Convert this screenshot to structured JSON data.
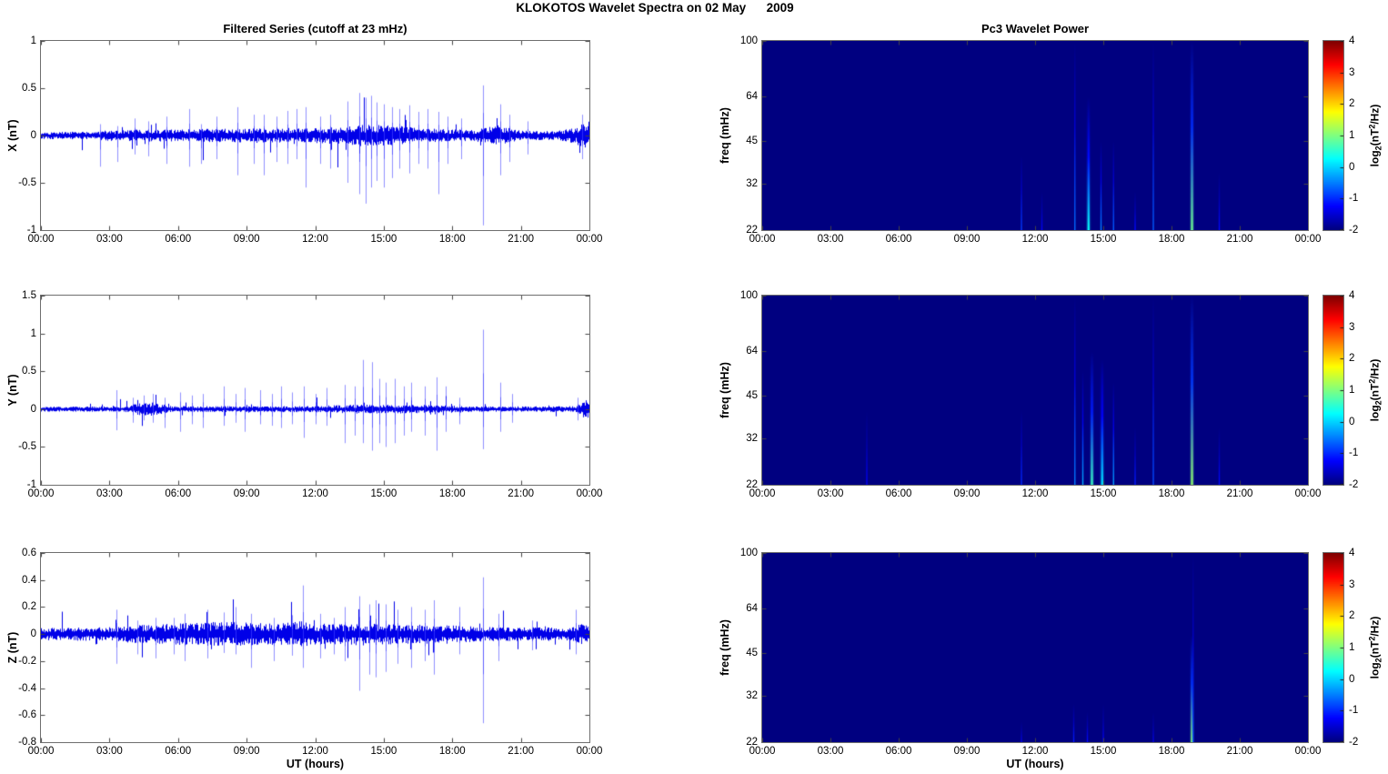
{
  "figure": {
    "title": "KLOKOTOS Wavelet Spectra on 02 May      2009",
    "background": "#ffffff"
  },
  "x_axis": {
    "tick_labels": [
      "00:00",
      "03:00",
      "06:00",
      "09:00",
      "12:00",
      "15:00",
      "18:00",
      "21:00",
      "00:00"
    ],
    "tick_hours": [
      0,
      3,
      6,
      9,
      12,
      15,
      18,
      21,
      24
    ],
    "xlim_hours": [
      0,
      24
    ],
    "xlabel": "UT (hours)"
  },
  "colorbar": {
    "ticks": [
      "4",
      "3",
      "2",
      "1",
      "0",
      "-1",
      "-2"
    ],
    "tick_values": [
      4,
      3,
      2,
      1,
      0,
      -1,
      -2
    ],
    "clim": [
      -2,
      4
    ],
    "colormap": "jet",
    "label_parts": {
      "prefix": "log",
      "sub": "2",
      "mid": "(nT",
      "sup": "2",
      "suffix": "/Hz)"
    }
  },
  "colors": {
    "line": "#0000e8",
    "spike": "rgba(55,55,255,0.55)",
    "axis": "#6e6e6e",
    "tick_mark": "#444444",
    "spectrogram_bg_value": -2,
    "text": "#000000"
  },
  "chart_data": [
    {
      "type": "line",
      "id": "x-series",
      "title": "Filtered Series (cutoff at 23 mHz)",
      "ylabel": "X (nT)",
      "ylim": [
        -1,
        1
      ],
      "yticks": [
        "1",
        "0.5",
        "0",
        "-0.5",
        "-1"
      ],
      "ytick_values": [
        1,
        0.5,
        0,
        -0.5,
        -1
      ],
      "grid": false,
      "seed": 101,
      "noise_envelope": [
        [
          0,
          0.03
        ],
        [
          2.5,
          0.032
        ],
        [
          3,
          0.045
        ],
        [
          5,
          0.05
        ],
        [
          8,
          0.055
        ],
        [
          9.5,
          0.06
        ],
        [
          11,
          0.055
        ],
        [
          13,
          0.07
        ],
        [
          13.8,
          0.09
        ],
        [
          15.5,
          0.085
        ],
        [
          16.5,
          0.06
        ],
        [
          18,
          0.05
        ],
        [
          19,
          0.045
        ],
        [
          19.6,
          0.075
        ],
        [
          20.3,
          0.07
        ],
        [
          21,
          0.04
        ],
        [
          22.5,
          0.035
        ],
        [
          23.3,
          0.06
        ],
        [
          23.8,
          0.1
        ],
        [
          24,
          0.1
        ]
      ],
      "spikes": [
        [
          2.6,
          0.12,
          -0.33
        ],
        [
          3.35,
          0.1,
          -0.28
        ],
        [
          4.1,
          0.18,
          -0.2
        ],
        [
          4.7,
          0.15,
          -0.22
        ],
        [
          5.5,
          0.2,
          -0.3
        ],
        [
          6.5,
          0.28,
          -0.33
        ],
        [
          7.0,
          0.12,
          -0.3
        ],
        [
          7.7,
          0.2,
          -0.25
        ],
        [
          8.6,
          0.3,
          -0.42
        ],
        [
          9.3,
          0.22,
          -0.3
        ],
        [
          9.75,
          0.22,
          -0.42
        ],
        [
          10.3,
          0.2,
          -0.28
        ],
        [
          10.8,
          0.26,
          -0.3
        ],
        [
          11.2,
          0.28,
          -0.25
        ],
        [
          11.6,
          0.3,
          -0.55
        ],
        [
          12.2,
          0.2,
          -0.3
        ],
        [
          12.65,
          0.22,
          -0.35
        ],
        [
          13.4,
          0.36,
          -0.5
        ],
        [
          13.95,
          0.45,
          -0.62
        ],
        [
          14.2,
          0.4,
          -0.72
        ],
        [
          14.45,
          0.42,
          -0.55
        ],
        [
          14.7,
          0.35,
          -0.48
        ],
        [
          15.0,
          0.33,
          -0.55
        ],
        [
          15.35,
          0.3,
          -0.45
        ],
        [
          15.7,
          0.28,
          -0.35
        ],
        [
          16.1,
          0.32,
          -0.4
        ],
        [
          16.5,
          0.25,
          -0.3
        ],
        [
          16.9,
          0.28,
          -0.35
        ],
        [
          17.4,
          0.25,
          -0.62
        ],
        [
          17.8,
          0.2,
          -0.3
        ],
        [
          18.4,
          0.18,
          -0.25
        ],
        [
          19.35,
          0.53,
          -0.95
        ],
        [
          20.1,
          0.33,
          -0.42
        ],
        [
          20.5,
          0.22,
          -0.28
        ],
        [
          21.3,
          0.15,
          -0.2
        ],
        [
          23.7,
          0.22,
          -0.25
        ]
      ]
    },
    {
      "type": "line",
      "id": "y-series",
      "title": "",
      "ylabel": "Y (nT)",
      "ylim": [
        -1,
        1.5
      ],
      "yticks": [
        "1.5",
        "1",
        "0.5",
        "0",
        "-0.5",
        "-1"
      ],
      "ytick_values": [
        1.5,
        1,
        0.5,
        0,
        -0.5,
        -1
      ],
      "grid": false,
      "seed": 202,
      "noise_envelope": [
        [
          0,
          0.025
        ],
        [
          3.8,
          0.028
        ],
        [
          4.2,
          0.06
        ],
        [
          4.8,
          0.07
        ],
        [
          5.5,
          0.04
        ],
        [
          6,
          0.03
        ],
        [
          9,
          0.03
        ],
        [
          12,
          0.032
        ],
        [
          13.5,
          0.045
        ],
        [
          16,
          0.045
        ],
        [
          17.5,
          0.04
        ],
        [
          19,
          0.03
        ],
        [
          21,
          0.028
        ],
        [
          23.4,
          0.03
        ],
        [
          23.8,
          0.09
        ],
        [
          24,
          0.09
        ]
      ],
      "spikes": [
        [
          3.3,
          0.25,
          -0.28
        ],
        [
          4.0,
          0.15,
          -0.18
        ],
        [
          4.5,
          0.18,
          -0.15
        ],
        [
          4.9,
          0.2,
          -0.18
        ],
        [
          5.4,
          0.15,
          -0.25
        ],
        [
          6.1,
          0.22,
          -0.3
        ],
        [
          6.6,
          0.18,
          -0.2
        ],
        [
          7.1,
          0.2,
          -0.25
        ],
        [
          8.0,
          0.3,
          -0.22
        ],
        [
          8.5,
          0.2,
          -0.18
        ],
        [
          8.9,
          0.28,
          -0.3
        ],
        [
          9.6,
          0.25,
          -0.2
        ],
        [
          10.1,
          0.2,
          -0.22
        ],
        [
          10.5,
          0.3,
          -0.25
        ],
        [
          11.0,
          0.22,
          -0.2
        ],
        [
          11.5,
          0.3,
          -0.38
        ],
        [
          12.0,
          0.2,
          -0.2
        ],
        [
          12.5,
          0.28,
          -0.22
        ],
        [
          13.3,
          0.32,
          -0.45
        ],
        [
          13.75,
          0.3,
          -0.35
        ],
        [
          14.1,
          0.65,
          -0.45
        ],
        [
          14.5,
          0.62,
          -0.55
        ],
        [
          14.8,
          0.4,
          -0.45
        ],
        [
          15.1,
          0.35,
          -0.5
        ],
        [
          15.5,
          0.4,
          -0.45
        ],
        [
          15.9,
          0.3,
          -0.35
        ],
        [
          16.2,
          0.35,
          -0.3
        ],
        [
          16.8,
          0.3,
          -0.35
        ],
        [
          17.3,
          0.42,
          -0.55
        ],
        [
          17.7,
          0.3,
          -0.3
        ],
        [
          18.3,
          0.15,
          -0.2
        ],
        [
          19.35,
          1.05,
          -0.53
        ],
        [
          20.1,
          0.35,
          -0.3
        ],
        [
          20.6,
          0.2,
          -0.18
        ],
        [
          23.5,
          0.15,
          -0.15
        ]
      ]
    },
    {
      "type": "line",
      "id": "z-series",
      "title": "",
      "ylabel": "Z (nT)",
      "ylim": [
        -0.8,
        0.6
      ],
      "yticks": [
        "0.6",
        "0.4",
        "0.2",
        "0",
        "-0.2",
        "-0.4",
        "-0.6",
        "-0.8"
      ],
      "ytick_values": [
        0.6,
        0.4,
        0.2,
        0,
        -0.2,
        -0.4,
        -0.6,
        -0.8
      ],
      "xlabel": "UT (hours)",
      "grid": false,
      "seed": 303,
      "noise_envelope": [
        [
          0,
          0.035
        ],
        [
          3,
          0.04
        ],
        [
          4,
          0.05
        ],
        [
          5,
          0.055
        ],
        [
          6.5,
          0.065
        ],
        [
          8,
          0.07
        ],
        [
          9,
          0.065
        ],
        [
          10.5,
          0.06
        ],
        [
          11.3,
          0.075
        ],
        [
          12,
          0.06
        ],
        [
          13,
          0.06
        ],
        [
          14,
          0.065
        ],
        [
          15,
          0.06
        ],
        [
          16,
          0.055
        ],
        [
          17,
          0.055
        ],
        [
          18,
          0.05
        ],
        [
          19,
          0.045
        ],
        [
          20,
          0.04
        ],
        [
          21,
          0.038
        ],
        [
          23.3,
          0.04
        ],
        [
          23.6,
          0.065
        ],
        [
          24,
          0.05
        ]
      ],
      "spikes": [
        [
          3.3,
          0.18,
          -0.22
        ],
        [
          4.2,
          0.1,
          -0.15
        ],
        [
          5.0,
          0.12,
          -0.18
        ],
        [
          5.8,
          0.12,
          -0.15
        ],
        [
          6.3,
          0.15,
          -0.2
        ],
        [
          7.3,
          0.18,
          -0.18
        ],
        [
          8.0,
          0.16,
          -0.14
        ],
        [
          8.5,
          0.2,
          -0.15
        ],
        [
          9.2,
          0.15,
          -0.25
        ],
        [
          10.2,
          0.12,
          -0.2
        ],
        [
          11.0,
          0.14,
          -0.16
        ],
        [
          11.45,
          0.36,
          -0.25
        ],
        [
          12.2,
          0.15,
          -0.18
        ],
        [
          12.8,
          0.12,
          -0.15
        ],
        [
          13.3,
          0.2,
          -0.2
        ],
        [
          13.95,
          0.28,
          -0.42
        ],
        [
          14.35,
          0.22,
          -0.3
        ],
        [
          14.65,
          0.25,
          -0.32
        ],
        [
          15.1,
          0.22,
          -0.28
        ],
        [
          15.6,
          0.18,
          -0.22
        ],
        [
          16.2,
          0.2,
          -0.25
        ],
        [
          16.8,
          0.18,
          -0.2
        ],
        [
          17.2,
          0.25,
          -0.3
        ],
        [
          18.3,
          0.2,
          -0.15
        ],
        [
          19.35,
          0.42,
          -0.66
        ],
        [
          20.0,
          0.15,
          -0.2
        ],
        [
          21.5,
          0.1,
          -0.12
        ],
        [
          23.4,
          0.18,
          -0.15
        ]
      ]
    },
    {
      "type": "heatmap",
      "id": "x-wavelet",
      "title": "Pc3 Wavelet Power",
      "ylabel": "freq (mHz)",
      "yscale": "log",
      "ylim": [
        22,
        100
      ],
      "yticks": [
        "100",
        "64",
        "45",
        "32",
        "22"
      ],
      "ytick_values": [
        100,
        64,
        45,
        32,
        22
      ],
      "clim": [
        -2,
        4
      ],
      "background_value": -2,
      "streaks": [
        [
          11.4,
          40,
          -0.9
        ],
        [
          12.3,
          30,
          -1.3
        ],
        [
          13.75,
          100,
          -0.6
        ],
        [
          14.35,
          64,
          0.3
        ],
        [
          14.9,
          45,
          -0.5
        ],
        [
          15.45,
          45,
          -0.7
        ],
        [
          16.4,
          30,
          -1.2
        ],
        [
          17.2,
          100,
          -0.7
        ],
        [
          18.9,
          100,
          0.9
        ],
        [
          20.1,
          35,
          -1.2
        ]
      ]
    },
    {
      "type": "heatmap",
      "id": "y-wavelet",
      "title": "",
      "ylabel": "freq (mHz)",
      "yscale": "log",
      "ylim": [
        22,
        100
      ],
      "yticks": [
        "100",
        "64",
        "45",
        "32",
        "22"
      ],
      "ytick_values": [
        100,
        64,
        45,
        32,
        22
      ],
      "clim": [
        -2,
        4
      ],
      "background_value": -2,
      "streaks": [
        [
          4.6,
          40,
          -1.3
        ],
        [
          11.4,
          40,
          -1.0
        ],
        [
          13.75,
          100,
          -0.5
        ],
        [
          14.1,
          55,
          -0.2
        ],
        [
          14.5,
          64,
          0.6
        ],
        [
          14.95,
          60,
          0.1
        ],
        [
          15.45,
          50,
          -0.3
        ],
        [
          16.4,
          35,
          -1.1
        ],
        [
          17.2,
          100,
          -0.8
        ],
        [
          18.9,
          100,
          1.1
        ],
        [
          20.1,
          35,
          -1.2
        ]
      ]
    },
    {
      "type": "heatmap",
      "id": "z-wavelet",
      "title": "",
      "ylabel": "freq (mHz)",
      "yscale": "log",
      "ylim": [
        22,
        100
      ],
      "yticks": [
        "100",
        "64",
        "45",
        "32",
        "22"
      ],
      "ytick_values": [
        100,
        64,
        45,
        32,
        22
      ],
      "xlabel": "UT (hours)",
      "clim": [
        -2,
        4
      ],
      "background_value": -2,
      "streaks": [
        [
          11.4,
          26,
          -1.4
        ],
        [
          13.7,
          30,
          -1.1
        ],
        [
          14.3,
          28,
          -1.2
        ],
        [
          15.0,
          30,
          -1.3
        ],
        [
          17.2,
          28,
          -1.4
        ],
        [
          18.9,
          52,
          1.0
        ],
        [
          18.95,
          100,
          -0.9
        ]
      ]
    }
  ]
}
